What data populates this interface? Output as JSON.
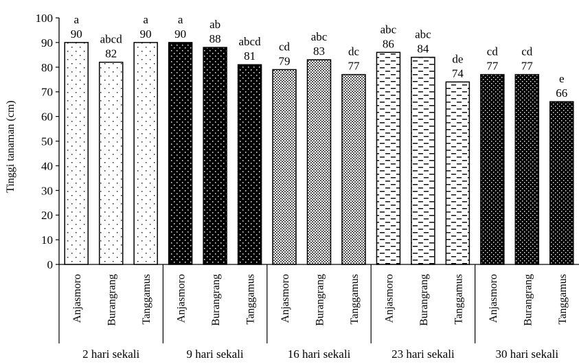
{
  "chart_data": {
    "type": "bar",
    "ylabel": "Tinggi tanaman (cm)",
    "xlabel": "",
    "ylim": [
      0,
      100
    ],
    "yticks": [
      0,
      10,
      20,
      30,
      40,
      50,
      60,
      70,
      80,
      90,
      100
    ],
    "grid": false,
    "legend": "none",
    "groups": [
      {
        "label": "2 hari sekali",
        "pattern": "sparse-dots",
        "bars": [
          {
            "category": "Anjasmoro",
            "value": 90,
            "letter": "a"
          },
          {
            "category": "Burangrang",
            "value": 82,
            "letter": "abcd"
          },
          {
            "category": "Tanggamus",
            "value": 90,
            "letter": "a"
          }
        ]
      },
      {
        "label": "9 hari sekali",
        "pattern": "black-white-dots",
        "bars": [
          {
            "category": "Anjasmoro",
            "value": 90,
            "letter": "a"
          },
          {
            "category": "Burangrang",
            "value": 88,
            "letter": "ab"
          },
          {
            "category": "Tanggamus",
            "value": 81,
            "letter": "abcd"
          }
        ]
      },
      {
        "label": "16 hari sekali",
        "pattern": "crosshatch",
        "bars": [
          {
            "category": "Anjasmoro",
            "value": 79,
            "letter": "cd"
          },
          {
            "category": "Burangrang",
            "value": 83,
            "letter": "abc"
          },
          {
            "category": "Tanggamus",
            "value": 77,
            "letter": "dc"
          }
        ]
      },
      {
        "label": "23 hari sekali",
        "pattern": "dashes",
        "bars": [
          {
            "category": "Anjasmoro",
            "value": 86,
            "letter": "abc"
          },
          {
            "category": "Burangrang",
            "value": 84,
            "letter": "abc"
          },
          {
            "category": "Tanggamus",
            "value": 74,
            "letter": "de"
          }
        ]
      },
      {
        "label": "30 hari sekali",
        "pattern": "black-dense-dots",
        "bars": [
          {
            "category": "Anjasmoro",
            "value": 77,
            "letter": "cd"
          },
          {
            "category": "Burangrang",
            "value": 77,
            "letter": "cd"
          },
          {
            "category": "Tanggamus",
            "value": 66,
            "letter": "e"
          }
        ]
      }
    ]
  }
}
